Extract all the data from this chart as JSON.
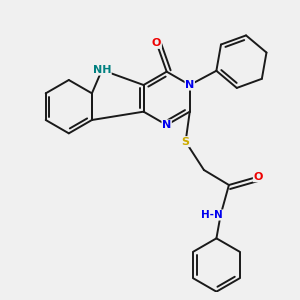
{
  "background_color": "#f0f0f0",
  "bond_color": "#1a1a1a",
  "atom_colors": {
    "N": "#0000ee",
    "NH": "#008080",
    "O": "#ee0000",
    "S": "#ccaa00",
    "C": "#1a1a1a"
  },
  "figsize": [
    3.0,
    3.0
  ],
  "dpi": 100
}
